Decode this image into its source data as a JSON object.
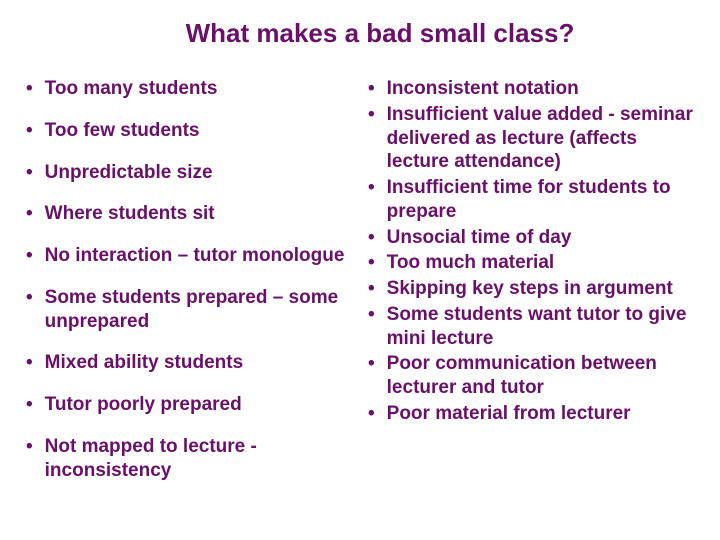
{
  "title": {
    "text": "What makes a bad small class?",
    "color": "#6a0f6a",
    "fontsize": 26
  },
  "body": {
    "color": "#6a0f6a",
    "fontsize": 19,
    "bullet_glyph": "•"
  },
  "left_items": [
    "Too many students",
    "Too few students",
    "Unpredictable size",
    "Where students sit",
    "No interaction – tutor monologue",
    "Some students prepared – some unprepared",
    "Mixed ability students",
    "Tutor poorly prepared",
    "Not mapped to lecture - inconsistency"
  ],
  "right_items": [
    "Inconsistent notation",
    "Insufficient value added - seminar delivered as lecture (affects lecture attendance)",
    "Insufficient time for students to prepare",
    "Unsocial time of day",
    "Too much material",
    "Skipping key steps in argument",
    "Some students want tutor to give mini lecture",
    "Poor communication between lecturer and tutor",
    "Poor material from lecturer"
  ]
}
